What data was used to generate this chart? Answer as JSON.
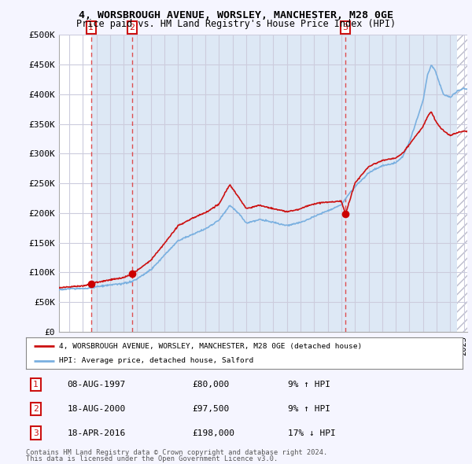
{
  "title1": "4, WORSBROUGH AVENUE, WORSLEY, MANCHESTER, M28 0GE",
  "title2": "Price paid vs. HM Land Registry's House Price Index (HPI)",
  "ylabel_ticks": [
    "£0",
    "£50K",
    "£100K",
    "£150K",
    "£200K",
    "£250K",
    "£300K",
    "£350K",
    "£400K",
    "£450K",
    "£500K"
  ],
  "ytick_values": [
    0,
    50000,
    100000,
    150000,
    200000,
    250000,
    300000,
    350000,
    400000,
    450000,
    500000
  ],
  "ylim": [
    0,
    500000
  ],
  "xlim_start": 1995.25,
  "xlim_end": 2025.25,
  "background_color": "#f5f5ff",
  "plot_bg_color": "#ffffff",
  "grid_color": "#ccccdd",
  "hpi_color": "#7ab0e0",
  "price_color": "#cc1111",
  "sale_dot_color": "#cc0000",
  "sale_marker_size": 7,
  "vline_color": "#dd3333",
  "band_color": "#dde8f5",
  "transactions": [
    {
      "label": 1,
      "date": 1997.608,
      "price": 80000,
      "date_str": "08-AUG-1997",
      "price_str": "£80,000",
      "hpi_str": "9% ↑ HPI"
    },
    {
      "label": 2,
      "date": 2000.622,
      "price": 97500,
      "date_str": "18-AUG-2000",
      "price_str": "£97,500",
      "hpi_str": "9% ↑ HPI"
    },
    {
      "label": 3,
      "date": 2016.297,
      "price": 198000,
      "date_str": "18-APR-2016",
      "price_str": "£198,000",
      "hpi_str": "17% ↓ HPI"
    }
  ],
  "legend_line1": "4, WORSBROUGH AVENUE, WORSLEY, MANCHESTER, M28 0GE (detached house)",
  "legend_line2": "HPI: Average price, detached house, Salford",
  "footnote1": "Contains HM Land Registry data © Crown copyright and database right 2024.",
  "footnote2": "This data is licensed under the Open Government Licence v3.0.",
  "hatch_color": "#bbbbcc",
  "box_label_color": "#cc1111",
  "hpi_anchors": [
    [
      1995.25,
      71000
    ],
    [
      1996.0,
      72000
    ],
    [
      1997.0,
      73500
    ],
    [
      1997.608,
      74500
    ],
    [
      1998.0,
      76000
    ],
    [
      1999.0,
      79000
    ],
    [
      2000.0,
      82000
    ],
    [
      2000.622,
      85000
    ],
    [
      2001.0,
      90000
    ],
    [
      2002.0,
      105000
    ],
    [
      2003.0,
      130000
    ],
    [
      2004.0,
      155000
    ],
    [
      2005.0,
      165000
    ],
    [
      2006.0,
      175000
    ],
    [
      2007.0,
      190000
    ],
    [
      2007.8,
      215000
    ],
    [
      2008.5,
      200000
    ],
    [
      2009.0,
      185000
    ],
    [
      2010.0,
      190000
    ],
    [
      2011.0,
      185000
    ],
    [
      2012.0,
      180000
    ],
    [
      2013.0,
      185000
    ],
    [
      2014.0,
      195000
    ],
    [
      2015.0,
      205000
    ],
    [
      2016.0,
      215000
    ],
    [
      2016.297,
      225000
    ],
    [
      2017.0,
      245000
    ],
    [
      2018.0,
      268000
    ],
    [
      2019.0,
      280000
    ],
    [
      2020.0,
      285000
    ],
    [
      2020.5,
      295000
    ],
    [
      2021.0,
      320000
    ],
    [
      2021.5,
      355000
    ],
    [
      2022.0,
      390000
    ],
    [
      2022.3,
      430000
    ],
    [
      2022.6,
      450000
    ],
    [
      2022.9,
      440000
    ],
    [
      2023.2,
      420000
    ],
    [
      2023.5,
      400000
    ],
    [
      2024.0,
      395000
    ],
    [
      2024.5,
      405000
    ],
    [
      2025.0,
      410000
    ],
    [
      2025.25,
      408000
    ]
  ],
  "price_anchors": [
    [
      1995.25,
      74000
    ],
    [
      1996.0,
      75500
    ],
    [
      1997.0,
      77500
    ],
    [
      1997.608,
      80000
    ],
    [
      1998.0,
      83000
    ],
    [
      1999.0,
      87000
    ],
    [
      2000.0,
      91000
    ],
    [
      2000.622,
      97500
    ],
    [
      2001.0,
      103000
    ],
    [
      2002.0,
      120000
    ],
    [
      2003.0,
      148000
    ],
    [
      2004.0,
      178000
    ],
    [
      2005.0,
      190000
    ],
    [
      2006.0,
      200000
    ],
    [
      2007.0,
      215000
    ],
    [
      2007.8,
      248000
    ],
    [
      2008.5,
      225000
    ],
    [
      2009.0,
      208000
    ],
    [
      2010.0,
      213000
    ],
    [
      2011.0,
      207000
    ],
    [
      2012.0,
      202000
    ],
    [
      2013.0,
      207000
    ],
    [
      2014.0,
      215000
    ],
    [
      2015.0,
      218000
    ],
    [
      2016.0,
      220000
    ],
    [
      2016.297,
      198000
    ],
    [
      2017.0,
      250000
    ],
    [
      2018.0,
      278000
    ],
    [
      2019.0,
      288000
    ],
    [
      2020.0,
      292000
    ],
    [
      2020.5,
      300000
    ],
    [
      2021.0,
      315000
    ],
    [
      2021.5,
      330000
    ],
    [
      2022.0,
      345000
    ],
    [
      2022.3,
      360000
    ],
    [
      2022.6,
      370000
    ],
    [
      2022.9,
      355000
    ],
    [
      2023.2,
      345000
    ],
    [
      2023.5,
      338000
    ],
    [
      2024.0,
      330000
    ],
    [
      2024.5,
      335000
    ],
    [
      2025.0,
      338000
    ],
    [
      2025.25,
      337000
    ]
  ]
}
